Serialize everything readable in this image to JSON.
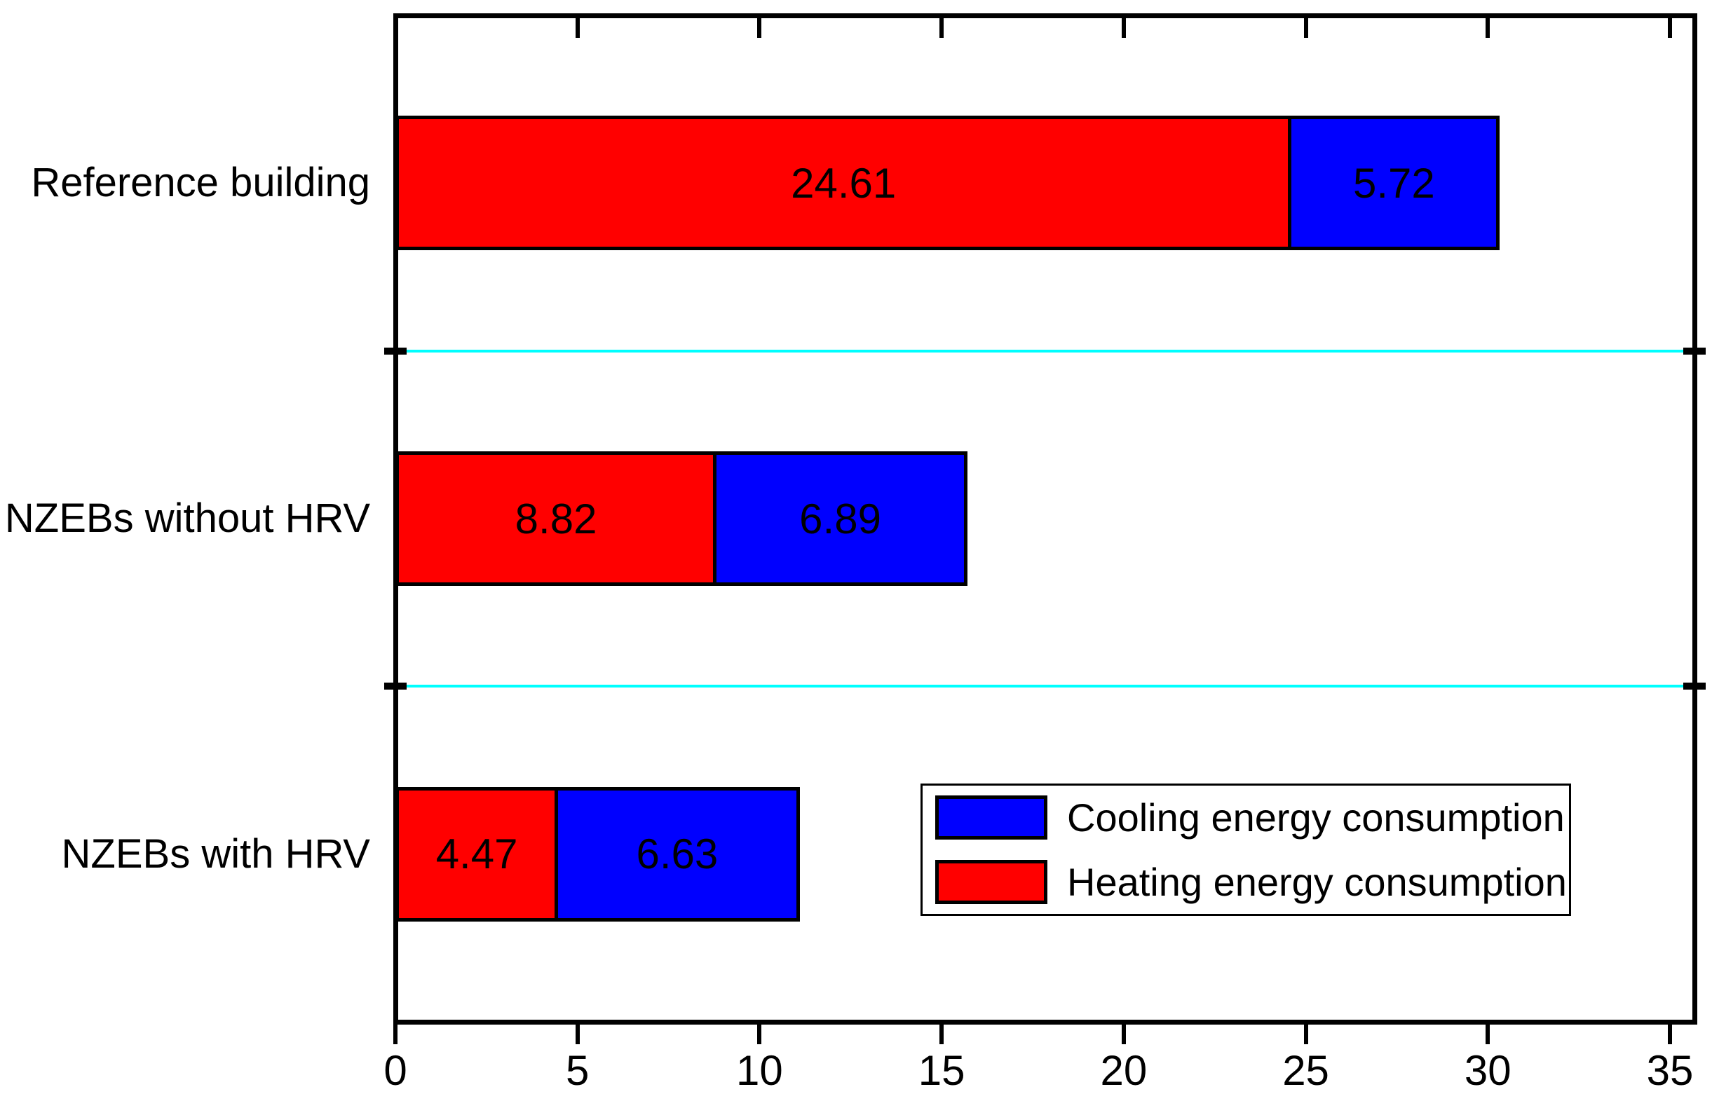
{
  "chart_data": {
    "type": "bar",
    "orientation": "horizontal",
    "stacked": true,
    "title": "",
    "xlabel": "",
    "ylabel": "",
    "categories": [
      "Reference building",
      "NZEBs without HRV",
      "NZEBs with HRV"
    ],
    "series": [
      {
        "name": "Heating energy consumption",
        "color": "#ff0000",
        "values": [
          24.61,
          8.82,
          4.47
        ]
      },
      {
        "name": "Cooling energy consumption",
        "color": "#0000ff",
        "values": [
          5.72,
          6.89,
          6.63
        ]
      }
    ],
    "bar_totals": [
      30.33,
      15.71,
      11.1
    ],
    "xlim": [
      0,
      35.7
    ],
    "xticks": [
      0,
      5,
      10,
      15,
      20,
      25,
      30,
      35
    ],
    "grid": "off",
    "category_separator_lines": true,
    "legend": {
      "position": "inside-bottom-right",
      "entries": [
        {
          "label": "Cooling energy consumption",
          "color": "#0000ff"
        },
        {
          "label": "Heating energy consumption",
          "color": "#ff0000"
        }
      ]
    }
  },
  "colors": {
    "heating": "#ff0000",
    "cooling": "#0000ff",
    "separator": "#00ffff",
    "axis": "#000000",
    "background": "#ffffff",
    "value_text": "#000000"
  }
}
